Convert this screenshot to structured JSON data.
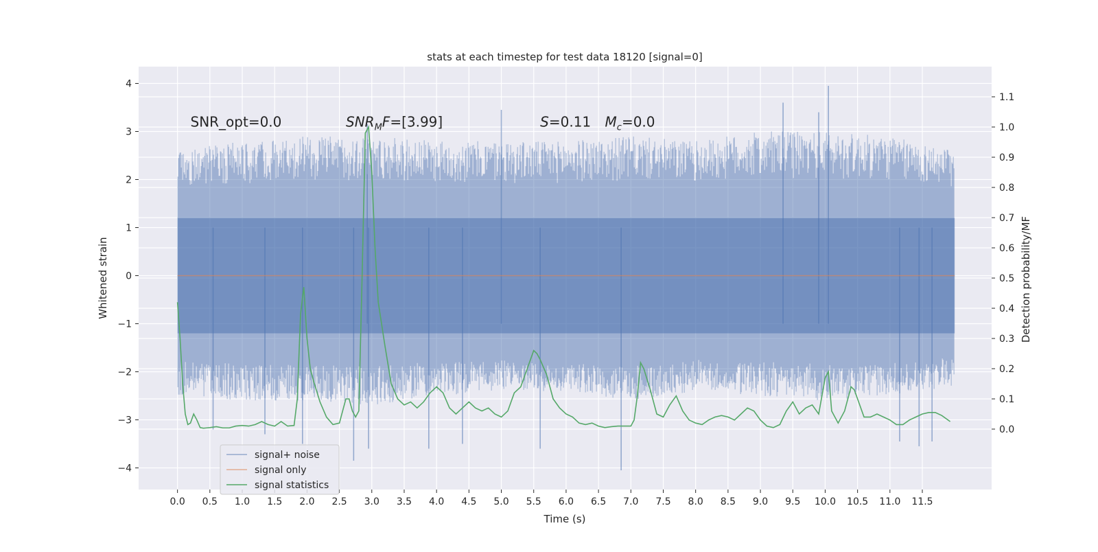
{
  "chart_data": {
    "type": "line",
    "title": "stats at each timestep for test data 18120 [signal=0]",
    "xlabel": "Time (s)",
    "ylabel_left": "Whitened strain",
    "ylabel_right": "Detection probability/MF",
    "xlim": [
      -0.6,
      12.57
    ],
    "ylim_left": [
      -4.45,
      4.35
    ],
    "ylim_right": [
      -0.2,
      1.2
    ],
    "x_ticks": [
      0.0,
      0.5,
      1.0,
      1.5,
      2.0,
      2.5,
      3.0,
      3.5,
      4.0,
      4.5,
      5.0,
      5.5,
      6.0,
      6.5,
      7.0,
      7.5,
      8.0,
      8.5,
      9.0,
      9.5,
      10.0,
      10.5,
      11.0,
      11.5
    ],
    "x_tick_labels": [
      "0.0",
      "0.5",
      "1.0",
      "1.5",
      "2.0",
      "2.5",
      "3.0",
      "3.5",
      "4.0",
      "4.5",
      "5.0",
      "5.5",
      "6.0",
      "6.5",
      "7.0",
      "7.5",
      "8.0",
      "8.5",
      "9.0",
      "9.5",
      "10.0",
      "10.5",
      "11.0",
      "11.5"
    ],
    "y_left_ticks": [
      -4,
      -3,
      -2,
      -1,
      0,
      1,
      2,
      3,
      4
    ],
    "y_left_tick_labels": [
      "−4",
      "−3",
      "−2",
      "−1",
      "0",
      "1",
      "2",
      "3",
      "4"
    ],
    "y_right_ticks": [
      0.0,
      0.1,
      0.2,
      0.3,
      0.4,
      0.5,
      0.6,
      0.7,
      0.8,
      0.9,
      1.0,
      1.1
    ],
    "y_right_tick_labels": [
      "0.0",
      "0.1",
      "0.2",
      "0.3",
      "0.4",
      "0.5",
      "0.6",
      "0.7",
      "0.8",
      "0.9",
      "1.0",
      "1.1"
    ],
    "grid": true,
    "legend_placement": "lower-left",
    "annotations": [
      {
        "plain": "SNR_opt=0.0",
        "x": 0.2,
        "y": 3.2
      },
      {
        "italic": "SNR",
        "sub": "M",
        "italic2": "F",
        "rest": "=[3.99]",
        "x": 2.6,
        "y": 3.2
      },
      {
        "italic": "S",
        "rest": "=0.11",
        "x": 5.6,
        "y": 3.2
      },
      {
        "italic": "M",
        "sub": "c",
        "rest": "=0.0",
        "x": 6.6,
        "y": 3.2
      }
    ],
    "series": [
      {
        "name": "signal+ noise",
        "axis": "left",
        "color": "#4c72b0",
        "kind": "noise_band",
        "x_range": [
          0.0,
          12.0
        ],
        "lower_envelope_x": [
          0.0,
          1.0,
          2.0,
          3.0,
          4.0,
          5.0,
          6.0,
          7.0,
          8.0,
          9.0,
          10.0,
          11.0,
          12.0
        ],
        "lower_envelope_y": [
          -2.5,
          -2.6,
          -2.6,
          -2.7,
          -2.5,
          -2.4,
          -2.4,
          -2.6,
          -2.4,
          -2.5,
          -2.6,
          -2.5,
          -2.3
        ],
        "upper_envelope_x": [
          0.0,
          1.0,
          2.0,
          3.0,
          4.0,
          5.0,
          6.0,
          7.0,
          8.0,
          9.0,
          10.0,
          11.0,
          12.0
        ],
        "upper_envelope_y": [
          2.6,
          2.8,
          2.9,
          2.9,
          2.8,
          2.8,
          2.8,
          2.9,
          2.8,
          3.0,
          3.0,
          2.9,
          2.6
        ],
        "extreme_points": [
          {
            "x": 0.55,
            "y": -3.2
          },
          {
            "x": 1.35,
            "y": -3.3
          },
          {
            "x": 1.93,
            "y": -3.5
          },
          {
            "x": 2.72,
            "y": -3.85
          },
          {
            "x": 2.95,
            "y": -3.6
          },
          {
            "x": 3.88,
            "y": -3.6
          },
          {
            "x": 4.4,
            "y": -3.5
          },
          {
            "x": 5.6,
            "y": -3.6
          },
          {
            "x": 6.85,
            "y": -4.05
          },
          {
            "x": 11.15,
            "y": -3.45
          },
          {
            "x": 11.45,
            "y": -3.55
          },
          {
            "x": 11.65,
            "y": -3.45
          },
          {
            "x": 5.0,
            "y": 3.45
          },
          {
            "x": 9.35,
            "y": 3.6
          },
          {
            "x": 10.05,
            "y": 3.95
          },
          {
            "x": 9.9,
            "y": 3.4
          },
          {
            "x": 2.93,
            "y": 3.15
          }
        ]
      },
      {
        "name": "signal only",
        "axis": "left",
        "color": "#dd8452",
        "x": [
          0.0,
          12.0
        ],
        "values": [
          0.0,
          0.0
        ]
      },
      {
        "name": "signal statistics",
        "axis": "right",
        "color": "#55a868",
        "x": [
          0.0,
          0.04,
          0.08,
          0.12,
          0.16,
          0.2,
          0.25,
          0.3,
          0.35,
          0.4,
          0.45,
          0.5,
          0.6,
          0.7,
          0.8,
          0.9,
          1.0,
          1.1,
          1.2,
          1.3,
          1.4,
          1.5,
          1.6,
          1.7,
          1.8,
          1.85,
          1.9,
          1.95,
          2.0,
          2.05,
          2.1,
          2.2,
          2.3,
          2.4,
          2.5,
          2.55,
          2.6,
          2.65,
          2.7,
          2.75,
          2.8,
          2.85,
          2.9,
          2.95,
          3.0,
          3.05,
          3.1,
          3.2,
          3.3,
          3.4,
          3.5,
          3.6,
          3.7,
          3.8,
          3.9,
          4.0,
          4.1,
          4.2,
          4.3,
          4.4,
          4.5,
          4.6,
          4.7,
          4.8,
          4.9,
          5.0,
          5.1,
          5.2,
          5.3,
          5.4,
          5.5,
          5.55,
          5.6,
          5.7,
          5.8,
          5.9,
          6.0,
          6.1,
          6.2,
          6.3,
          6.4,
          6.5,
          6.6,
          6.7,
          6.8,
          6.9,
          7.0,
          7.05,
          7.1,
          7.15,
          7.2,
          7.3,
          7.4,
          7.5,
          7.6,
          7.7,
          7.8,
          7.9,
          8.0,
          8.1,
          8.2,
          8.3,
          8.4,
          8.5,
          8.6,
          8.7,
          8.8,
          8.9,
          9.0,
          9.1,
          9.2,
          9.3,
          9.4,
          9.5,
          9.6,
          9.7,
          9.8,
          9.9,
          10.0,
          10.05,
          10.1,
          10.2,
          10.3,
          10.4,
          10.45,
          10.5,
          10.6,
          10.7,
          10.8,
          10.9,
          11.0,
          11.1,
          11.2,
          11.3,
          11.4,
          11.5,
          11.6,
          11.7,
          11.8,
          11.93
        ],
        "values": [
          0.42,
          0.3,
          0.15,
          0.05,
          0.015,
          0.02,
          0.05,
          0.03,
          0.005,
          0.003,
          0.004,
          0.005,
          0.008,
          0.004,
          0.004,
          0.01,
          0.012,
          0.01,
          0.015,
          0.025,
          0.015,
          0.01,
          0.025,
          0.01,
          0.012,
          0.1,
          0.38,
          0.47,
          0.3,
          0.2,
          0.16,
          0.09,
          0.04,
          0.015,
          0.02,
          0.06,
          0.1,
          0.1,
          0.06,
          0.04,
          0.06,
          0.5,
          0.98,
          1.0,
          0.85,
          0.6,
          0.42,
          0.28,
          0.15,
          0.1,
          0.08,
          0.09,
          0.07,
          0.09,
          0.12,
          0.14,
          0.12,
          0.07,
          0.05,
          0.07,
          0.09,
          0.07,
          0.06,
          0.07,
          0.05,
          0.04,
          0.06,
          0.12,
          0.14,
          0.2,
          0.26,
          0.25,
          0.23,
          0.18,
          0.1,
          0.07,
          0.05,
          0.04,
          0.02,
          0.015,
          0.02,
          0.01,
          0.005,
          0.008,
          0.01,
          0.01,
          0.01,
          0.03,
          0.11,
          0.22,
          0.2,
          0.13,
          0.05,
          0.04,
          0.08,
          0.11,
          0.06,
          0.03,
          0.02,
          0.015,
          0.03,
          0.04,
          0.045,
          0.04,
          0.03,
          0.05,
          0.07,
          0.06,
          0.03,
          0.01,
          0.005,
          0.015,
          0.06,
          0.09,
          0.05,
          0.07,
          0.08,
          0.05,
          0.17,
          0.19,
          0.06,
          0.02,
          0.06,
          0.14,
          0.13,
          0.1,
          0.04,
          0.04,
          0.05,
          0.04,
          0.03,
          0.015,
          0.015,
          0.03,
          0.04,
          0.05,
          0.055,
          0.055,
          0.045,
          0.025
        ]
      }
    ]
  }
}
